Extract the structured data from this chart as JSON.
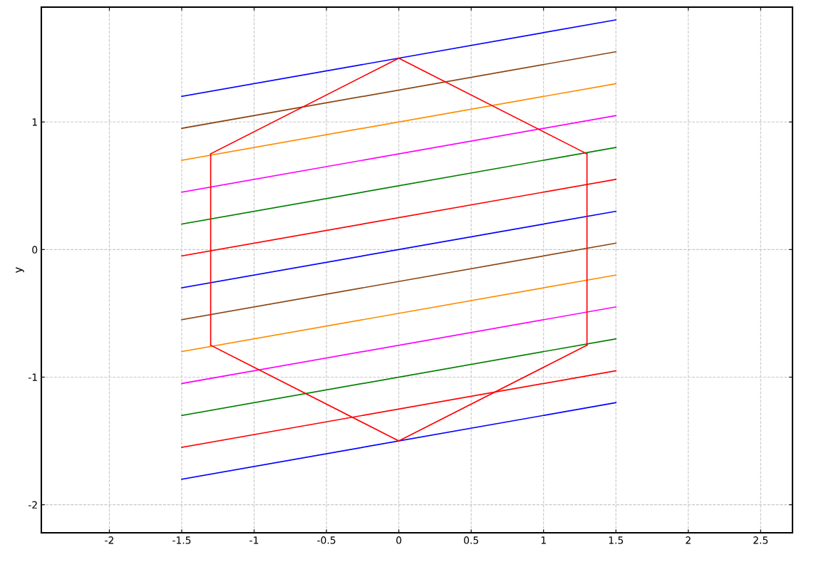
{
  "chart_data": {
    "type": "line",
    "ylabel": "y",
    "xlim": [
      -2.47,
      2.72
    ],
    "ylim": [
      -2.22,
      1.9
    ],
    "xticks": [
      -2,
      -1.5,
      -1,
      -0.5,
      0,
      0.5,
      1,
      1.5,
      2,
      2.5
    ],
    "yticks": [
      -2,
      -1,
      0,
      1
    ],
    "grid": true,
    "marker": "none",
    "line_style": "solid",
    "series": [
      {
        "color": "#0000ff",
        "x": [
          -1.5,
          1.5
        ],
        "values": [
          1.2,
          1.8
        ]
      },
      {
        "color": "#8b4513",
        "x": [
          -1.5,
          1.5
        ],
        "values": [
          0.95,
          1.55
        ]
      },
      {
        "color": "#ff8c00",
        "x": [
          -1.5,
          1.5
        ],
        "values": [
          0.7,
          1.3
        ]
      },
      {
        "color": "#ff00ff",
        "x": [
          -1.5,
          1.5
        ],
        "values": [
          0.45,
          1.05
        ]
      },
      {
        "color": "#008000",
        "x": [
          -1.5,
          1.5
        ],
        "values": [
          0.2,
          0.8
        ]
      },
      {
        "color": "#ff0000",
        "x": [
          -1.5,
          1.5
        ],
        "values": [
          -0.05,
          0.55
        ]
      },
      {
        "color": "#0000ff",
        "x": [
          -1.5,
          1.5
        ],
        "values": [
          -0.3,
          0.3
        ]
      },
      {
        "color": "#8b4513",
        "x": [
          -1.5,
          1.5
        ],
        "values": [
          -0.55,
          0.05
        ]
      },
      {
        "color": "#ff8c00",
        "x": [
          -1.5,
          1.5
        ],
        "values": [
          -0.8,
          -0.2
        ]
      },
      {
        "color": "#ff00ff",
        "x": [
          -1.5,
          1.5
        ],
        "values": [
          -1.05,
          -0.45
        ]
      },
      {
        "color": "#008000",
        "x": [
          -1.5,
          1.5
        ],
        "values": [
          -1.3,
          -0.7
        ]
      },
      {
        "color": "#ff0000",
        "x": [
          -1.5,
          1.5
        ],
        "values": [
          -1.55,
          -0.95
        ]
      },
      {
        "color": "#0000ff",
        "x": [
          -1.5,
          1.5
        ],
        "values": [
          -1.8,
          -1.2
        ]
      },
      {
        "color": "#ff0000",
        "x": [
          -1.3,
          0,
          1.3
        ],
        "values": [
          0.75,
          1.5,
          0.75
        ]
      },
      {
        "color": "#ff0000",
        "x": [
          -1.3,
          0,
          1.3
        ],
        "values": [
          -0.75,
          -1.5,
          -0.75
        ]
      },
      {
        "color": "#ff0000",
        "x": [
          -1.3,
          -1.3
        ],
        "values": [
          -0.75,
          0.75
        ]
      },
      {
        "color": "#ff0000",
        "x": [
          1.3,
          1.3
        ],
        "values": [
          -0.75,
          0.75
        ]
      }
    ]
  }
}
